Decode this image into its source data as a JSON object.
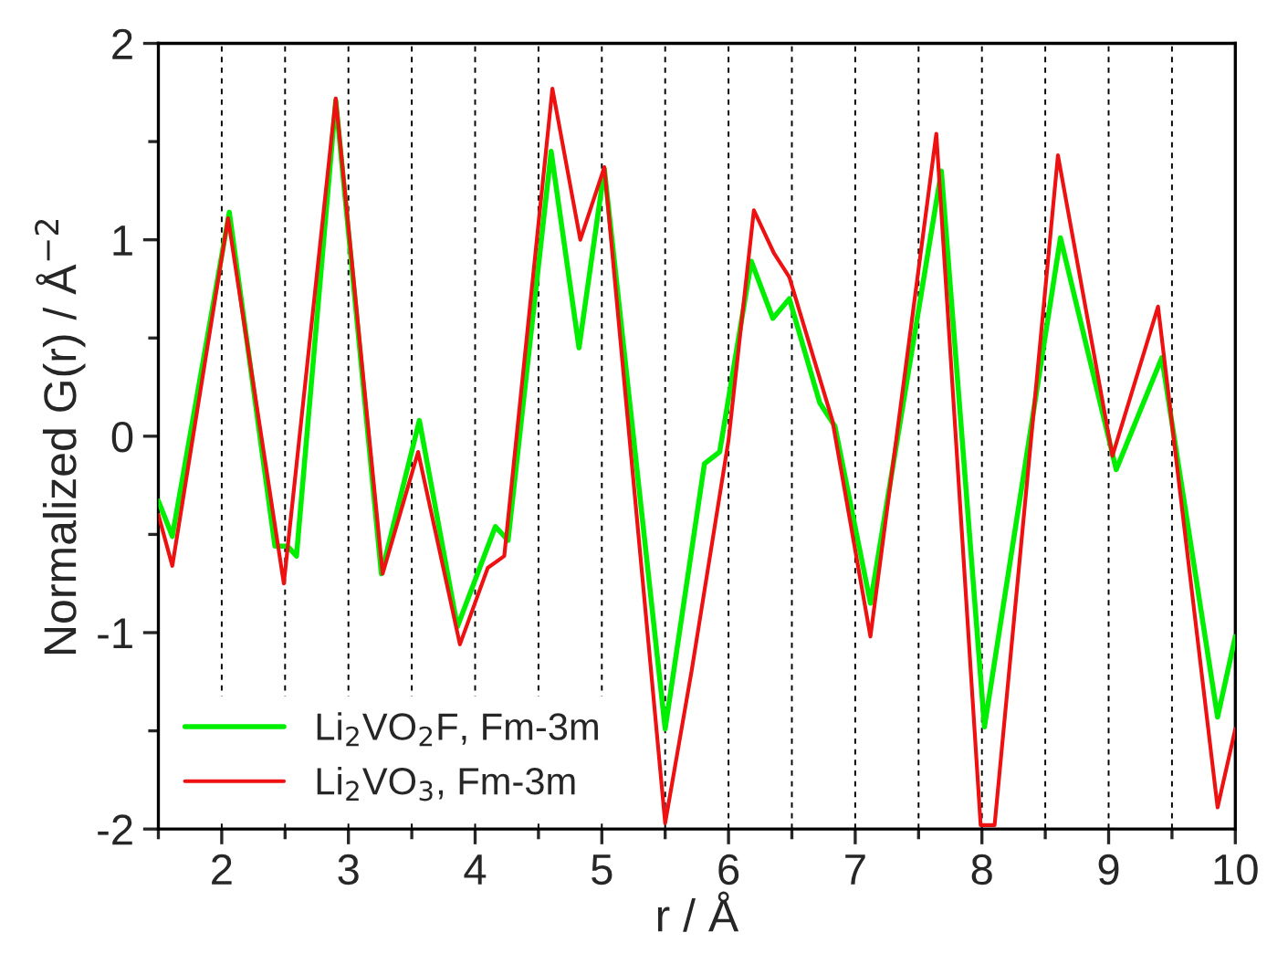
{
  "chart_data": {
    "type": "line",
    "xlabel": "r / Å",
    "ylabel": "Normalized G(r) / Å$^{−2}$",
    "xlim": [
      1.5,
      10
    ],
    "xticks": [
      2,
      3,
      4,
      5,
      6,
      7,
      8,
      9,
      10
    ],
    "ylim": [
      -2,
      2
    ],
    "yticks": [
      -2,
      -1,
      0,
      1,
      2
    ],
    "grid": false,
    "legend": "bottom left",
    "marker": "none",
    "line_style": "solid",
    "ref_lines": [
      {
        "axis": "x",
        "value": 2,
        "color": "#000000",
        "line_style": "dashed"
      },
      {
        "axis": "x",
        "value": 2.5,
        "color": "#000000",
        "line_style": "dashed"
      },
      {
        "axis": "x",
        "value": 3,
        "color": "#000000",
        "line_style": "dashed"
      },
      {
        "axis": "x",
        "value": 3.5,
        "color": "#000000",
        "line_style": "dashed"
      },
      {
        "axis": "x",
        "value": 4,
        "color": "#000000",
        "line_style": "dashed"
      },
      {
        "axis": "x",
        "value": 4.5,
        "color": "#000000",
        "line_style": "dashed"
      },
      {
        "axis": "x",
        "value": 5,
        "color": "#000000",
        "line_style": "dashed"
      },
      {
        "axis": "x",
        "value": 5.5,
        "color": "#000000",
        "line_style": "dashed"
      },
      {
        "axis": "x",
        "value": 6,
        "color": "#000000",
        "line_style": "dashed"
      },
      {
        "axis": "x",
        "value": 6.5,
        "color": "#000000",
        "line_style": "dashed"
      },
      {
        "axis": "x",
        "value": 7,
        "color": "#000000",
        "line_style": "dashed"
      },
      {
        "axis": "x",
        "value": 7.5,
        "color": "#000000",
        "line_style": "dashed"
      },
      {
        "axis": "x",
        "value": 8,
        "color": "#000000",
        "line_style": "dashed"
      },
      {
        "axis": "x",
        "value": 8.5,
        "color": "#000000",
        "line_style": "dashed"
      },
      {
        "axis": "x",
        "value": 9,
        "color": "#000000",
        "line_style": "dashed"
      },
      {
        "axis": "x",
        "value": 9.5,
        "color": "#000000",
        "line_style": "dashed"
      }
    ],
    "series": [
      {
        "name": "Li$_{2}$VO$_{2}$F, Fm-3m",
        "color": "#00ee00",
        "x": [
          1.5,
          1.61,
          2.06,
          2.42,
          2.52,
          2.59,
          2.9,
          3.26,
          3.56,
          3.86,
          4.16,
          4.26,
          4.6,
          4.82,
          5.02,
          5.5,
          5.81,
          5.93,
          6.18,
          6.35,
          6.48,
          6.72,
          6.84,
          7.12,
          7.68,
          8.02,
          8.62,
          9.06,
          9.42,
          9.86,
          10
        ],
        "values": [
          -0.33,
          -0.51,
          1.14,
          -0.56,
          -0.56,
          -0.61,
          1.71,
          -0.7,
          0.08,
          -0.97,
          -0.46,
          -0.53,
          1.45,
          0.45,
          1.36,
          -1.49,
          -0.14,
          -0.08,
          0.89,
          0.6,
          0.7,
          0.17,
          0.05,
          -0.85,
          1.35,
          -1.48,
          1.01,
          -0.17,
          0.4,
          -1.43,
          -1.02
        ]
      },
      {
        "name": "Li$_{2}$VO$_{3}$, Fm-3m",
        "color": "#ee1111",
        "x": [
          1.5,
          1.61,
          2.05,
          2.49,
          2.9,
          3.27,
          3.55,
          3.88,
          4.1,
          4.23,
          4.61,
          4.83,
          5.02,
          5.5,
          5.71,
          6.0,
          6.2,
          6.36,
          6.48,
          6.82,
          7.12,
          7.64,
          7.99,
          8.1,
          8.6,
          9.03,
          9.39,
          9.86,
          10
        ],
        "values": [
          -0.4,
          -0.66,
          1.11,
          -0.75,
          1.72,
          -0.7,
          -0.08,
          -1.06,
          -0.67,
          -0.61,
          1.77,
          1.0,
          1.37,
          -1.97,
          -1.19,
          -0.02,
          1.15,
          0.93,
          0.81,
          0.08,
          -1.02,
          1.54,
          -1.98,
          -1.98,
          1.43,
          -0.1,
          0.66,
          -1.89,
          -1.49
        ]
      }
    ]
  }
}
